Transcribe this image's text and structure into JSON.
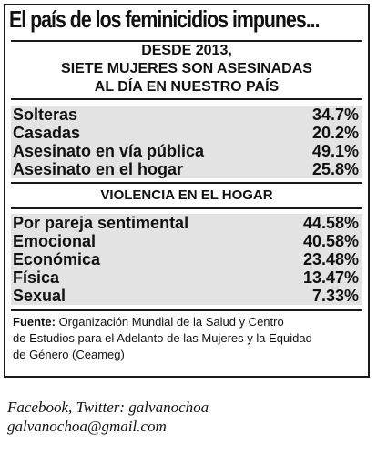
{
  "title": "El país de los feminicidios impunes...",
  "subheading": {
    "line1": "DESDE 2013,",
    "line2": "SIETE MUJERES SON ASESINADAS",
    "line3": "AL DÍA EN NUESTRO PAÍS"
  },
  "section1": {
    "rows": [
      {
        "label": "Solteras",
        "value": "34.7%"
      },
      {
        "label": "Casadas",
        "value": "20.2%"
      },
      {
        "label": "Asesinato en vía pública",
        "value": "49.1%"
      },
      {
        "label": "Asesinato en el hogar",
        "value": "25.8%"
      }
    ]
  },
  "section2": {
    "heading": "VIOLENCIA EN EL HOGAR",
    "rows": [
      {
        "label": "Por pareja sentimental",
        "value": "44.58%"
      },
      {
        "label": "Emocional",
        "value": "40.58%"
      },
      {
        "label": "Económica",
        "value": "23.48%"
      },
      {
        "label": "Física",
        "value": "13.47%"
      },
      {
        "label": "Sexual",
        "value": "7.33%"
      }
    ]
  },
  "source": {
    "label": "Fuente:",
    "line1": " Organización Mundial de la Salud y Centro",
    "line2": "de Estudios para el Adelanto de las Mujeres y la Equidad",
    "line3": "de Género (Ceameg)"
  },
  "footer": {
    "line1": "Facebook, Twitter: galvanochoa",
    "line2": "galvanochoa@gmail.com"
  }
}
